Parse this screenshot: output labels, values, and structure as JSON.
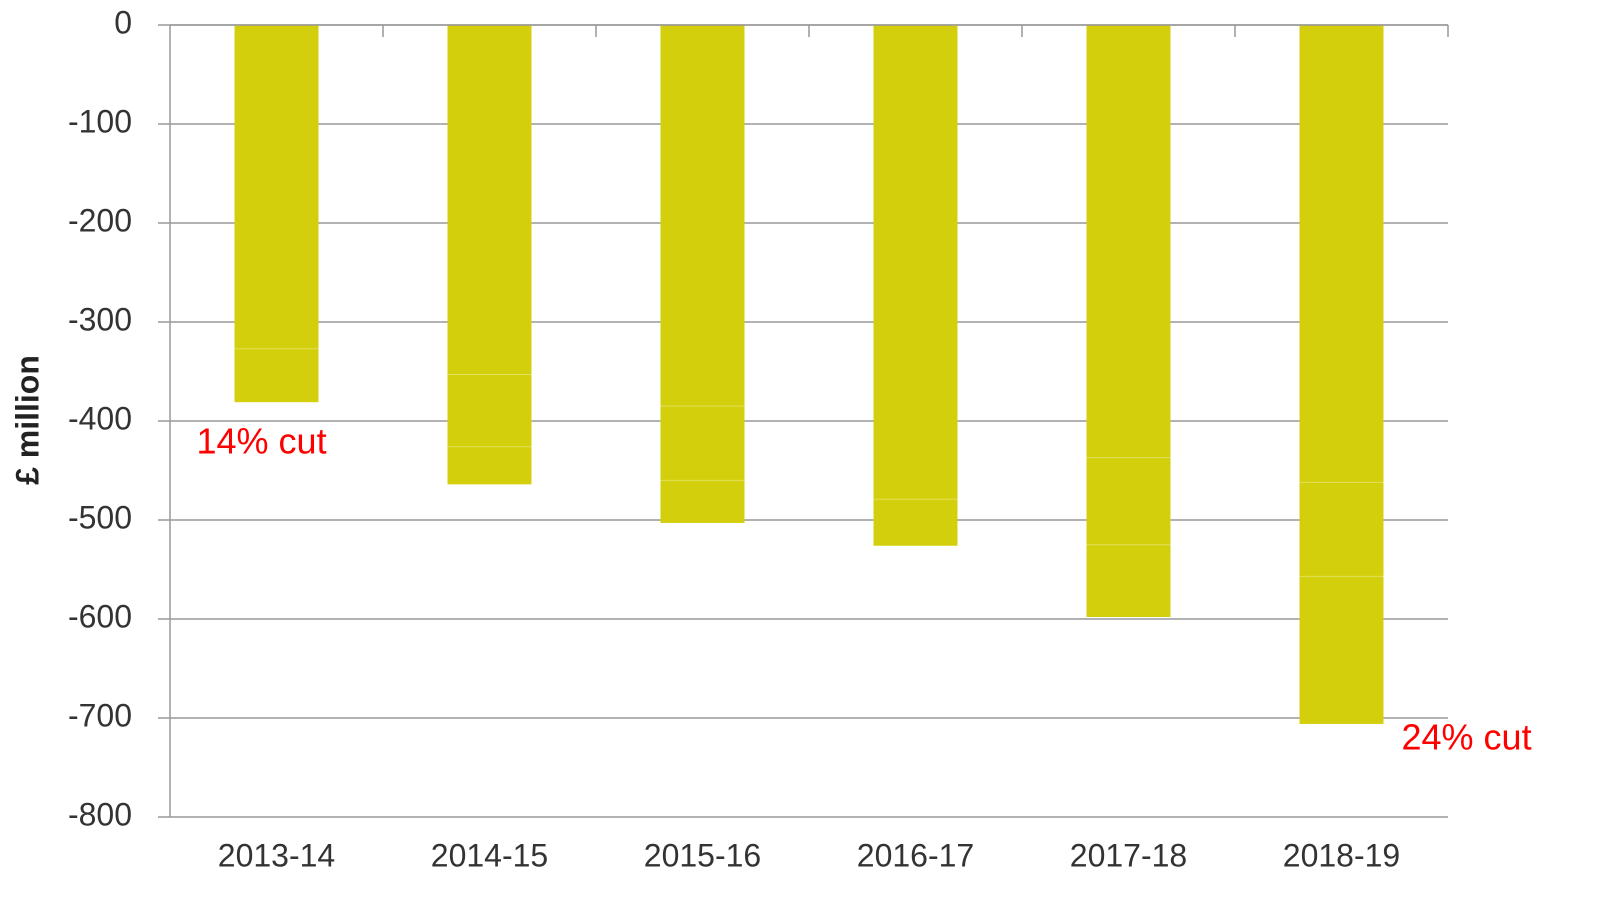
{
  "chart_data": {
    "type": "stacked_bar",
    "y_label": "£ million",
    "categories": [
      "2013-14",
      "2014-15",
      "2015-16",
      "2016-17",
      "2017-18",
      "2018-19"
    ],
    "series": [
      {
        "color": "#d4cf0c",
        "values": [
          -327,
          -353,
          -385,
          -479,
          -437,
          -462
        ]
      },
      {
        "color": "#d4cf0c",
        "values": [
          -54,
          -73,
          -75,
          -47,
          -88,
          -95
        ]
      },
      {
        "color": "#d4cf0c",
        "values": [
          null,
          -38,
          -43,
          null,
          -73,
          -149
        ]
      }
    ],
    "ylim": [
      -800,
      0
    ],
    "yticks": [
      0,
      -100,
      -200,
      -300,
      -400,
      -500,
      -600,
      -700,
      -800
    ],
    "grid": true,
    "annotations": [
      {
        "text": "14% cut",
        "color": "#ff0000"
      },
      {
        "text": "24% cut",
        "color": "#ff0000"
      }
    ]
  }
}
